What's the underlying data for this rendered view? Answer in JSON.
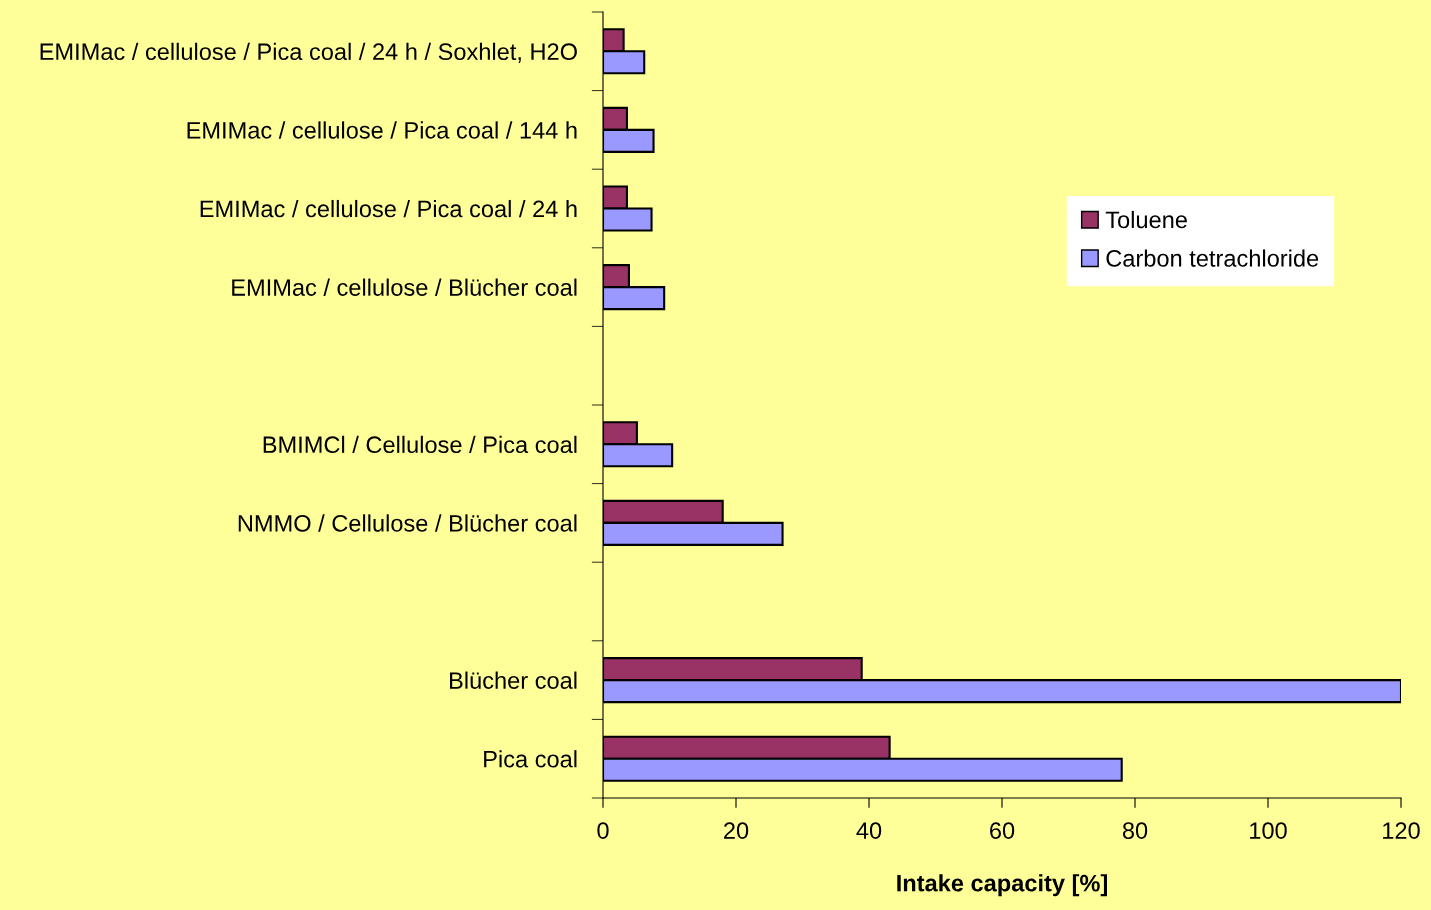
{
  "chart_data": {
    "type": "bar",
    "orientation": "horizontal",
    "xlabel": "Intake capacity [%]",
    "categories": [
      "EMIMac / cellulose / Pica coal / 24 h / Soxhlet, H2O",
      "EMIMac / cellulose / Pica coal / 144 h",
      "EMIMac / cellulose / Pica coal / 24 h",
      "EMIMac / cellulose / Blücher coal",
      null,
      "BMIMCl / Cellulose / Pica coal",
      "NMMO / Cellulose / Blücher coal",
      null,
      "Blücher coal",
      "Pica coal"
    ],
    "series": [
      {
        "name": "Toluene",
        "color": "#993366",
        "values": [
          3.1,
          3.6,
          3.6,
          3.9,
          null,
          5.1,
          18.0,
          null,
          38.9,
          43.1
        ]
      },
      {
        "name": "Carbon tetrachloride",
        "color": "#9999ff",
        "values": [
          6.2,
          7.6,
          7.3,
          9.2,
          null,
          10.4,
          27.0,
          null,
          120,
          78.0
        ]
      }
    ],
    "xlim": [
      0,
      120
    ],
    "xticks": [
      0,
      20,
      40,
      60,
      80,
      100,
      120
    ],
    "grid": false,
    "legend": "top right"
  }
}
